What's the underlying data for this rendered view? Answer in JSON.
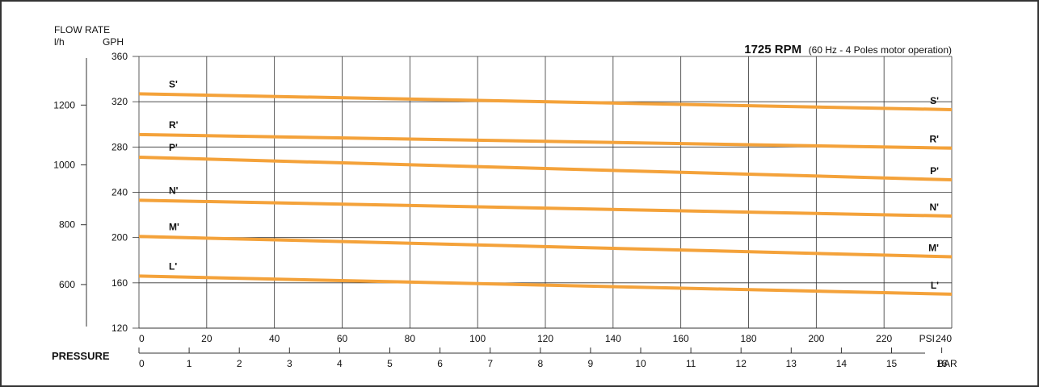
{
  "header": {
    "flow_rate": "FLOW RATE",
    "unit_lh": "l/h",
    "unit_gph": "GPH",
    "title_bold": "1725 RPM",
    "title_note": "(60 Hz - 4 Poles motor operation)",
    "pressure_label": "PRESSURE"
  },
  "colors": {
    "curve": "#F4A23A",
    "grid": "#333333",
    "frame": "#333333"
  },
  "chart_data": {
    "type": "line",
    "title": "1725 RPM (60 Hz - 4 Poles motor operation)",
    "xlabel": "PRESSURE",
    "x_unit": "PSI",
    "x_secondary_unit": "BAR",
    "ylabel": "FLOW RATE",
    "y_unit": "GPH",
    "y_secondary_unit": "l/h",
    "xlim": [
      0,
      240
    ],
    "ylim": [
      120,
      360
    ],
    "x_ticks": [
      0,
      20,
      40,
      60,
      80,
      100,
      120,
      140,
      160,
      180,
      200,
      220,
      240
    ],
    "x_tick_labels": [
      "0",
      "20",
      "40",
      "60",
      "80",
      "100",
      "120",
      "140",
      "160",
      "180",
      "200",
      "220",
      "240"
    ],
    "bar_ticks": [
      0,
      1,
      2,
      3,
      4,
      5,
      6,
      7,
      8,
      9,
      10,
      11,
      12,
      13,
      14,
      15,
      16
    ],
    "bar_tick_labels": [
      "0",
      "1",
      "2",
      "3",
      "4",
      "5",
      "6",
      "7",
      "8",
      "9",
      "10",
      "11",
      "12",
      "13",
      "14",
      "15",
      "16"
    ],
    "y_ticks": [
      120,
      160,
      200,
      240,
      280,
      320,
      360
    ],
    "y_tick_labels": [
      "120",
      "160",
      "200",
      "240",
      "280",
      "320",
      "360"
    ],
    "lh_ticks": [
      600,
      800,
      1000,
      1200
    ],
    "lh_tick_labels": [
      "600",
      "800",
      "1000",
      "1200"
    ],
    "grid": true,
    "series": [
      {
        "name": "S'",
        "x": [
          0,
          240
        ],
        "y": [
          327,
          313
        ]
      },
      {
        "name": "R'",
        "x": [
          0,
          240
        ],
        "y": [
          291,
          279
        ]
      },
      {
        "name": "P'",
        "x": [
          0,
          240
        ],
        "y": [
          271,
          251
        ]
      },
      {
        "name": "N'",
        "x": [
          0,
          240
        ],
        "y": [
          233,
          219
        ]
      },
      {
        "name": "M'",
        "x": [
          0,
          240
        ],
        "y": [
          201,
          183
        ]
      },
      {
        "name": "L'",
        "x": [
          0,
          240
        ],
        "y": [
          166,
          150
        ]
      }
    ]
  }
}
